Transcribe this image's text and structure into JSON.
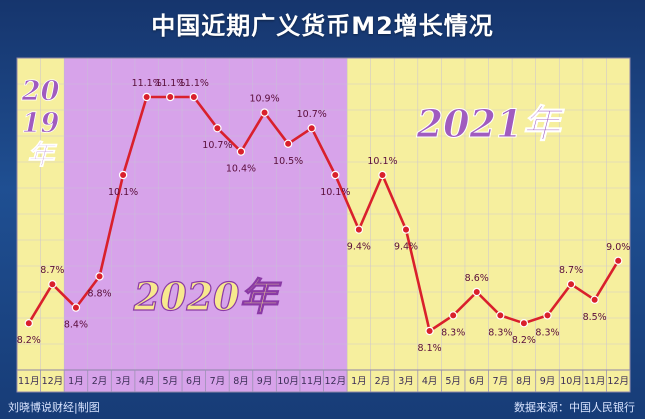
{
  "title": "中国近期广义货币M2增长情况",
  "footer": {
    "credit": "刘晓博说财经|制图",
    "source": "数据来源：中国人民银行"
  },
  "chart_data": {
    "type": "line",
    "title": "中国近期广义货币M2增长情况",
    "categories": [
      "11月",
      "12月",
      "1月",
      "2月",
      "3月",
      "4月",
      "5月",
      "6月",
      "7月",
      "8月",
      "9月",
      "10月",
      "11月",
      "12月",
      "1月",
      "2月",
      "3月",
      "4月",
      "5月",
      "6月",
      "7月",
      "8月",
      "9月",
      "10月",
      "11月",
      "12月"
    ],
    "values": [
      8.2,
      8.7,
      8.4,
      8.8,
      10.1,
      11.1,
      11.1,
      11.1,
      10.7,
      10.4,
      10.9,
      10.5,
      10.7,
      10.1,
      9.4,
      10.1,
      9.4,
      8.1,
      8.3,
      8.6,
      8.3,
      8.2,
      8.3,
      8.7,
      8.5,
      9.0
    ],
    "labels": [
      "8.2%",
      "8.7%",
      "8.4%",
      "8.8%",
      "10.1%",
      "11.1%",
      "11.1%",
      "11.1%",
      "10.7%",
      "10.4%",
      "10.9%",
      "10.5%",
      "10.7%",
      "10.1%",
      "9.4%",
      "10.1%",
      "9.4%",
      "8.1%",
      "8.3%",
      "8.6%",
      "8.3%",
      "8.2%",
      "8.3%",
      "8.7%",
      "8.5%",
      "9.0%"
    ],
    "ylim": [
      7.6,
      11.6
    ],
    "grid": true,
    "periods": [
      {
        "label": "2019年",
        "start": 0,
        "end": 1,
        "color": "#f6ef9e"
      },
      {
        "label": "2020年",
        "start": 2,
        "end": 13,
        "color": "#d7a3ea"
      },
      {
        "label": "2021年",
        "start": 14,
        "end": 25,
        "color": "#f6ef9e"
      }
    ],
    "colors": {
      "line": "#d9202c",
      "marker": "#d9202c",
      "label": "#5a0d3b",
      "year_text": "#a05bbf"
    }
  }
}
